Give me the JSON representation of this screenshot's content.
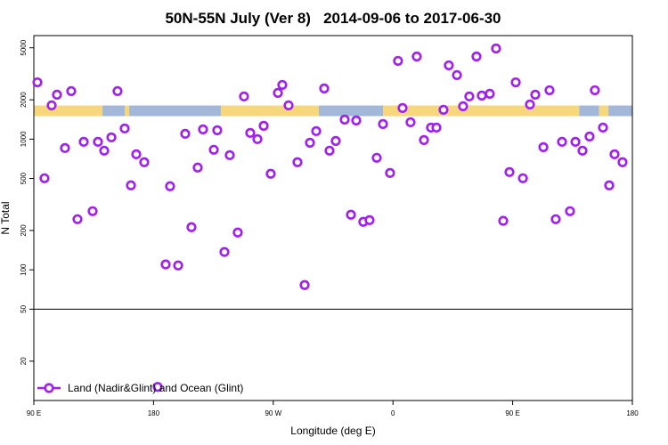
{
  "chart_data": {
    "type": "scatter",
    "title": "50N-55N July (Ver 8)   2014-09-06 to 2017-06-30",
    "x_label": "Longitude (deg E)",
    "y_label": "N Total",
    "log_y": true,
    "xlim": [
      90,
      540
    ],
    "ylim": [
      10,
      6200
    ],
    "xticks": [
      {
        "value": 90,
        "label": "90 E"
      },
      180,
      {
        "value": 270,
        "label": "90 W"
      },
      {
        "value": 360,
        "label": "0"
      },
      {
        "value": 450,
        "label": "90 E"
      },
      {
        "value": 540,
        "label": "180"
      }
    ],
    "yticks": [
      20,
      50,
      100,
      200,
      500,
      1000,
      2000,
      5000
    ],
    "hline": 50,
    "legend": "bottomleft",
    "band": {
      "ylim": [
        1500,
        1810
      ],
      "segments": [
        {
          "xlim": [
            90,
            141.6
          ],
          "color": "#f7d77c"
        },
        {
          "xlim": [
            141.6,
            158.3
          ],
          "color": "#a3b8d8"
        },
        {
          "xlim": [
            158.3,
            161.7
          ],
          "color": "#f7d77c"
        },
        {
          "xlim": [
            161.7,
            230.6
          ],
          "color": "#a3b8d8"
        },
        {
          "xlim": [
            230.6,
            304.3
          ],
          "color": "#f7d77c"
        },
        {
          "xlim": [
            304.3,
            352.5
          ],
          "color": "#a3b8d8"
        },
        {
          "xlim": [
            352.5,
            500
          ],
          "color": "#f7d77c"
        },
        {
          "xlim": [
            500,
            515
          ],
          "color": "#a3b8d8"
        },
        {
          "xlim": [
            515,
            522
          ],
          "color": "#f7d77c"
        },
        {
          "xlim": [
            522,
            540
          ],
          "color": "#a3b8d8"
        }
      ]
    },
    "series": [
      {
        "name": "Land (Nadir&Glint) and Ocean (Glint)",
        "color": "#a020f0",
        "x": [
          92.7,
          98.0,
          103.4,
          107.4,
          113.4,
          118.1,
          122.8,
          127.5,
          134.2,
          138.2,
          142.9,
          148.3,
          152.9,
          158.3,
          163.0,
          167.0,
          173.0,
          183.1,
          189.1,
          192.4,
          198.5,
          203.8,
          208.5,
          213.2,
          217.2,
          225.3,
          227.9,
          233.3,
          237.3,
          243.3,
          248.0,
          252.7,
          258.1,
          262.8,
          268.1,
          273.5,
          276.8,
          281.5,
          288.2,
          293.6,
          297.6,
          302.3,
          308.3,
          312.3,
          317.0,
          323.7,
          328.4,
          332.4,
          337.7,
          342.4,
          347.8,
          352.5,
          357.8,
          363.8,
          367.2,
          373.2,
          377.9,
          383.3,
          388.6,
          392.7,
          398.0,
          402.0,
          408.1,
          412.7,
          417.4,
          422.8,
          426.8,
          432.8,
          437.5,
          442.9,
          447.6,
          452.3,
          457.7,
          463.0,
          467.0,
          473.1,
          477.7,
          482.4,
          487.1,
          493.1,
          497.2,
          502.5,
          507.8,
          511.8,
          517.9,
          522.6,
          526.6,
          532.6
        ],
        "values": [
          2720,
          502,
          1813,
          2190,
          855,
          2330,
          244,
          954,
          281,
          954,
          816,
          1032,
          2330,
          1207,
          443,
          766,
          666,
          12.7,
          110,
          436,
          108,
          1099,
          212,
          606,
          1188,
          829,
          1169,
          137,
          754,
          193,
          2123,
          1116,
          1000,
          1265,
          543,
          2258,
          2600,
          1813,
          666,
          76.5,
          939,
          1152,
          2443,
          816,
          969,
          1411,
          264,
          1389,
          233,
          240,
          720,
          1305,
          551,
          3970,
          1730,
          1347,
          4290,
          984,
          1226,
          1226,
          1677,
          3670,
          3090,
          1785,
          2123,
          4290,
          2155,
          2223,
          4940,
          237,
          560,
          2720,
          502,
          1842,
          2190,
          868,
          2366,
          244,
          954,
          281,
          954,
          816,
          1048,
          2366,
          1226,
          443,
          766,
          666
        ]
      }
    ]
  }
}
